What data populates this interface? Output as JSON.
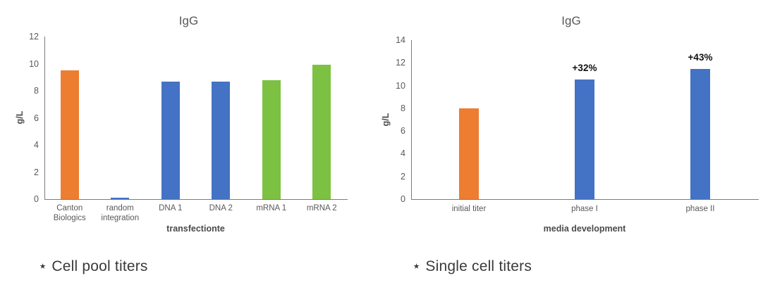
{
  "styles": {
    "background": "#ffffff",
    "bar_orange": "#ED7D31",
    "bar_blue": "#4472C4",
    "bar_green": "#7CC142",
    "axis_line": "#7c7c7c",
    "tick_label_color": "#595959",
    "title_color": "#595959",
    "axis_title_color": "#4a4a4a",
    "annotation_color": "#111111",
    "caption_color": "#3a3a3a"
  },
  "captions": {
    "left": "⋆ Cell pool titers",
    "right": "⋆ Single cell titers"
  },
  "chart_data": [
    {
      "type": "bar",
      "title": "IgG",
      "ylabel": "g/L",
      "xlabel": "transfectionte",
      "ylim": [
        0,
        12
      ],
      "ytick_step": 2,
      "grid": false,
      "legend": null,
      "categories": [
        "Canton Biologics",
        "random integration",
        "DNA 1",
        "DNA 2",
        "mRNA 1",
        "mRNA 2"
      ],
      "values": [
        9.5,
        0.1,
        8.7,
        8.7,
        8.8,
        9.9
      ],
      "bar_colors": [
        "#ED7D31",
        "#4472C4",
        "#4472C4",
        "#4472C4",
        "#7CC142",
        "#7CC142"
      ],
      "bar_labels": [
        "",
        "",
        "",
        "",
        "",
        ""
      ],
      "caption": "⋆ Cell pool titers"
    },
    {
      "type": "bar",
      "title": "IgG",
      "ylabel": "g/L",
      "xlabel": "media development",
      "ylim": [
        0,
        14
      ],
      "ytick_step": 2,
      "grid": false,
      "legend": null,
      "categories": [
        "initial titer",
        "phase I",
        "phase II"
      ],
      "values": [
        8,
        10.56,
        11.44
      ],
      "bar_colors": [
        "#ED7D31",
        "#4472C4",
        "#4472C4"
      ],
      "bar_labels": [
        "",
        "+32%",
        "+43%"
      ],
      "caption": "⋆ Single cell titers"
    }
  ]
}
